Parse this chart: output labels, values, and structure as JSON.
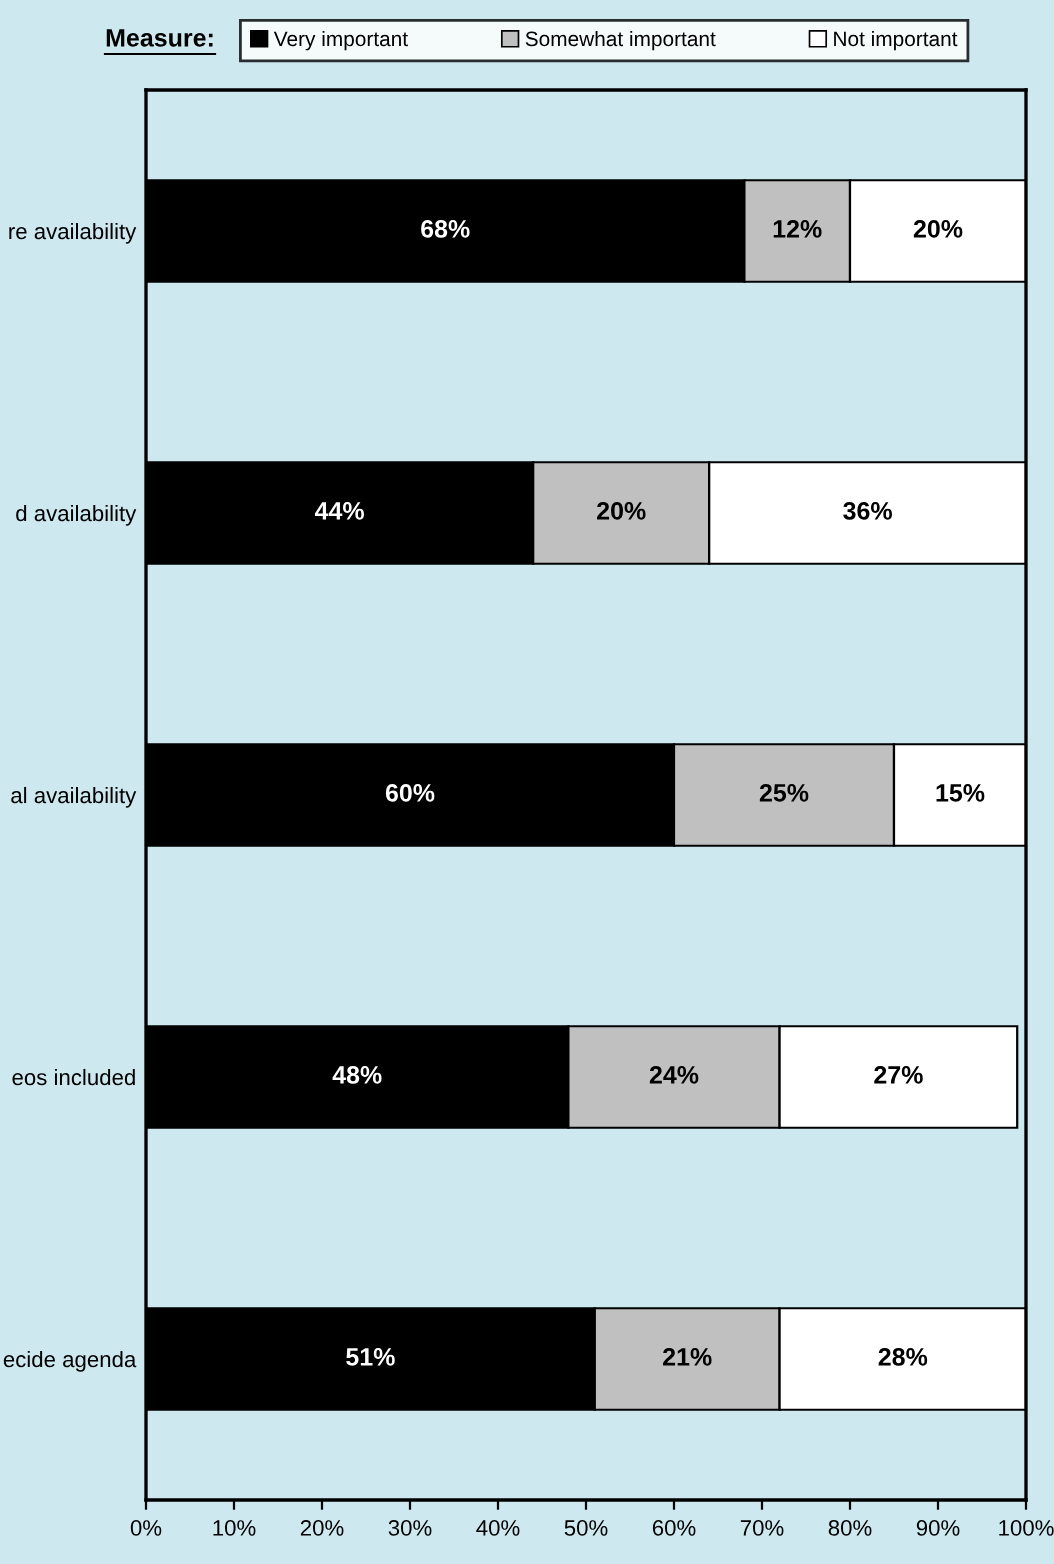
{
  "chart_data": {
    "type": "bar",
    "orientation": "horizontal",
    "stacked": true,
    "legend_title": "Measure:",
    "legend": "top",
    "categories": [
      "re availability",
      "d availability",
      "al availability",
      "eos included",
      "ecide agenda"
    ],
    "series": [
      {
        "name": "Very important",
        "color": "#000000",
        "values": [
          68,
          44,
          60,
          48,
          51
        ],
        "value_labels": [
          "68%",
          "44%",
          "60%",
          "48%",
          "51%"
        ]
      },
      {
        "name": "Somewhat important",
        "color": "#c0c0c0",
        "values": [
          12,
          20,
          25,
          24,
          21
        ],
        "value_labels": [
          "12%",
          "20%",
          "25%",
          "24%",
          "21%"
        ]
      },
      {
        "name": "Not important",
        "color": "#ffffff",
        "values": [
          20,
          36,
          15,
          27,
          28
        ],
        "value_labels": [
          "20%",
          "36%",
          "15%",
          "27%",
          "28%"
        ]
      }
    ],
    "xlim": [
      0,
      100
    ],
    "xticks": [
      {
        "value": 0,
        "label": "0%"
      },
      {
        "value": 10,
        "label": "10%"
      },
      {
        "value": 20,
        "label": "20%"
      },
      {
        "value": 30,
        "label": "30%"
      },
      {
        "value": 40,
        "label": "40%"
      },
      {
        "value": 50,
        "label": "50%"
      },
      {
        "value": 60,
        "label": "60%"
      },
      {
        "value": 70,
        "label": "70%"
      },
      {
        "value": 80,
        "label": "80%"
      },
      {
        "value": 90,
        "label": "90%"
      },
      {
        "value": 100,
        "label": "100%"
      }
    ],
    "grid": false
  }
}
